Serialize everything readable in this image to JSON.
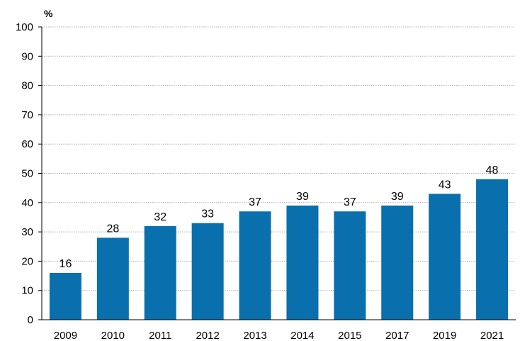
{
  "chart_data": {
    "type": "bar",
    "title": "",
    "xlabel": "",
    "ylabel": "%",
    "categories": [
      "2009",
      "2010",
      "2011",
      "2012",
      "2013",
      "2014",
      "2015",
      "2017",
      "2019",
      "2021"
    ],
    "values": [
      16,
      28,
      32,
      33,
      37,
      39,
      37,
      39,
      43,
      48
    ],
    "ylim": [
      0,
      100
    ],
    "yticks": [
      0,
      10,
      20,
      30,
      40,
      50,
      60,
      70,
      80,
      90,
      100
    ],
    "grid": true,
    "legend": "none",
    "colors": {
      "bar": "#0a6fad",
      "grid": "#b0b0b0",
      "axis": "#000000"
    }
  }
}
